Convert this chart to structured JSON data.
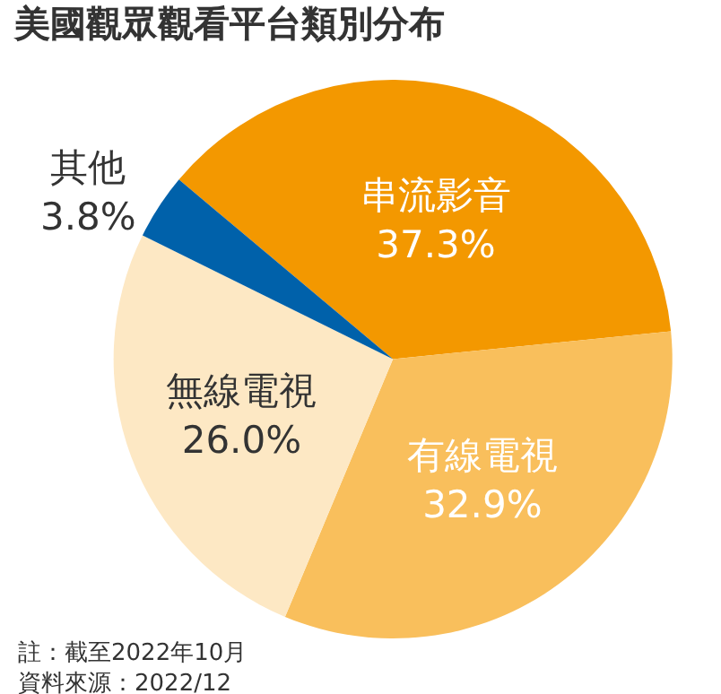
{
  "chart_data": {
    "type": "pie",
    "title": "美國觀眾觀看平台類別分布",
    "categories": [
      "串流影音",
      "有線電視",
      "無線電視",
      "其他"
    ],
    "values": [
      37.3,
      32.9,
      26.0,
      3.8
    ],
    "value_labels": [
      "37.3%",
      "32.9%",
      "26.0%",
      "3.8%"
    ],
    "colors": [
      "#f39800",
      "#f9bf5c",
      "#fde8c4",
      "#0061aa"
    ],
    "annotations": [
      "註：截至2022年10月",
      "資料來源：2022/12"
    ],
    "legend": false
  }
}
